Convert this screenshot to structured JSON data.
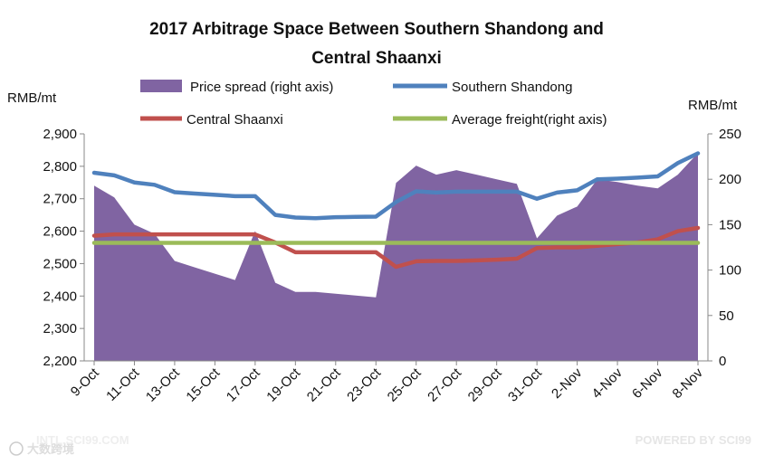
{
  "chart_data": {
    "type": "area+line",
    "title_line1": "2017 Arbitrage Space Between Southern Shandong and",
    "title_line2": "Central Shaanxi",
    "left_unit": "RMB/mt",
    "right_unit": "RMB/mt",
    "left_axis": {
      "min": 2200,
      "max": 2900,
      "ticks": [
        2200,
        2300,
        2400,
        2500,
        2600,
        2700,
        2800,
        2900
      ],
      "tick_labels": [
        "2,200",
        "2,300",
        "2,400",
        "2,500",
        "2,600",
        "2,700",
        "2,800",
        "2,900"
      ]
    },
    "right_axis": {
      "min": 0,
      "max": 250,
      "ticks": [
        0,
        50,
        100,
        150,
        200,
        250
      ],
      "tick_labels": [
        "0",
        "50",
        "100",
        "150",
        "200",
        "250"
      ]
    },
    "x_tick_labels": [
      "9-Oct",
      "11-Oct",
      "13-Oct",
      "15-Oct",
      "17-Oct",
      "19-Oct",
      "21-Oct",
      "23-Oct",
      "25-Oct",
      "27-Oct",
      "29-Oct",
      "31-Oct",
      "2-Nov",
      "4-Nov",
      "6-Nov",
      "8-Nov"
    ],
    "x_tick_day_index": [
      0,
      2,
      4,
      6,
      8,
      10,
      12,
      14,
      16,
      18,
      20,
      22,
      24,
      26,
      28,
      30
    ],
    "days": [
      0,
      1,
      2,
      3,
      4,
      5,
      6,
      7,
      8,
      9,
      10,
      11,
      12,
      13,
      14,
      15,
      16,
      17,
      18,
      19,
      20,
      21,
      22,
      23,
      24,
      25,
      26,
      27,
      28,
      29,
      30
    ],
    "series": [
      {
        "name": "Price spread (right axis)",
        "axis": "right",
        "kind": "area",
        "color": "#8064A2",
        "values": [
          193,
          180,
          150,
          140,
          110,
          103,
          96,
          89,
          143,
          86,
          76,
          76,
          74,
          72,
          70,
          196,
          215,
          205,
          210,
          205,
          200,
          195,
          135,
          160,
          170,
          200,
          197,
          193,
          190,
          205,
          229
        ]
      },
      {
        "name": "Southern Shandong",
        "axis": "left",
        "kind": "line",
        "color": "#4F81BD",
        "values": [
          2780,
          2772,
          2750,
          2743,
          2720,
          2716,
          2712,
          2708,
          2708,
          2650,
          2642,
          2640,
          2643,
          2644,
          2645,
          2690,
          2723,
          2719,
          2722,
          2722,
          2722,
          2722,
          2700,
          2719,
          2726,
          2760,
          2762,
          2765,
          2769,
          2810,
          2840
        ]
      },
      {
        "name": "Central Shaanxi",
        "axis": "left",
        "kind": "line",
        "color": "#C0504D",
        "values": [
          2586,
          2590,
          2590,
          2590,
          2590,
          2590,
          2590,
          2590,
          2590,
          2565,
          2535,
          2535,
          2535,
          2535,
          2535,
          2490,
          2507,
          2508,
          2508,
          2510,
          2512,
          2515,
          2548,
          2550,
          2550,
          2555,
          2560,
          2565,
          2575,
          2600,
          2610
        ]
      },
      {
        "name": "Average freight(right axis)",
        "axis": "right",
        "kind": "line",
        "color": "#9BBB59",
        "values": [
          130,
          130,
          130,
          130,
          130,
          130,
          130,
          130,
          130,
          130,
          130,
          130,
          130,
          130,
          130,
          130,
          130,
          130,
          130,
          130,
          130,
          130,
          130,
          130,
          130,
          130,
          130,
          130,
          130,
          130,
          130
        ]
      }
    ],
    "legend": [
      {
        "label": "Price spread (right axis)",
        "kind": "area",
        "color": "#8064A2"
      },
      {
        "label": "Southern Shandong",
        "kind": "line",
        "color": "#4F81BD"
      },
      {
        "label": "Central Shaanxi",
        "kind": "line",
        "color": "#C0504D"
      },
      {
        "label": "Average freight(right axis)",
        "kind": "line",
        "color": "#9BBB59"
      }
    ],
    "gridlines": false
  },
  "watermarks": {
    "bottom_left": "INTL.SCI99.COM",
    "bottom_left_brand": "大数跨境",
    "bottom_right": "POWERED BY SCI99"
  }
}
